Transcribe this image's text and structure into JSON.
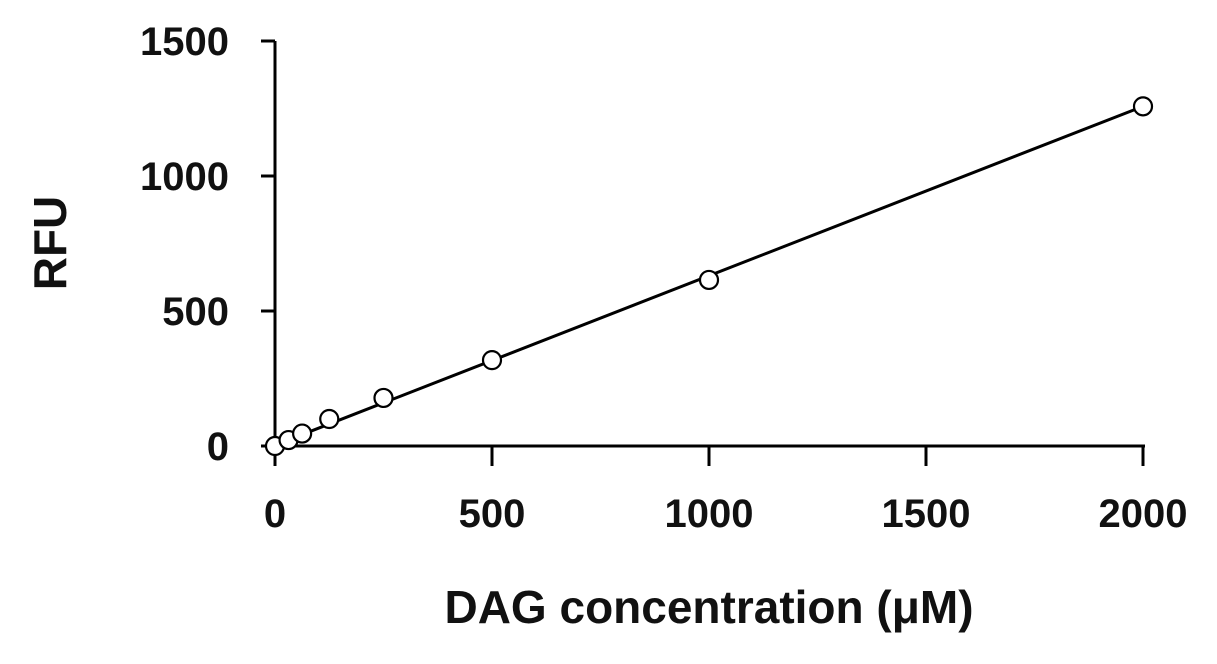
{
  "chart_data": {
    "type": "scatter",
    "title": "",
    "xlabel": "DAG concentration (μM)",
    "ylabel": "RFU",
    "xlim": [
      0,
      2000
    ],
    "ylim": [
      0,
      1500
    ],
    "x_ticks": [
      0,
      500,
      1000,
      1500,
      2000
    ],
    "y_ticks": [
      0,
      500,
      1000,
      1500
    ],
    "x_tick_labels": [
      "0",
      "500",
      "1000",
      "1500",
      "2000"
    ],
    "y_tick_labels": [
      "0",
      "500",
      "1000",
      "1500"
    ],
    "grid": false,
    "legend": "none",
    "series": [
      {
        "marker": "open-circle",
        "x": [
          0,
          31.25,
          62.5,
          125,
          250,
          500,
          1000,
          2000
        ],
        "y": [
          0,
          22,
          46,
          100,
          178,
          318,
          615,
          1258
        ]
      }
    ],
    "fit_line": {
      "type": "linear",
      "x": [
        0,
        2000
      ],
      "y": [
        3,
        1258
      ]
    },
    "colors": {
      "axis": "#000000",
      "marker_stroke": "#000000",
      "marker_fill": "#ffffff",
      "line": "#000000"
    }
  }
}
